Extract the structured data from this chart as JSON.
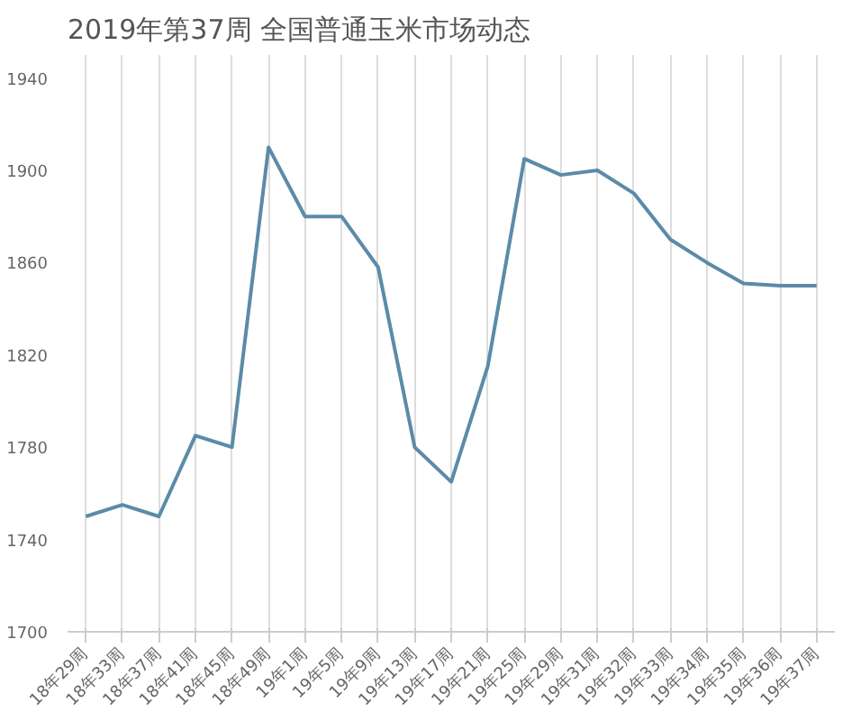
{
  "chart_data": {
    "type": "line",
    "title": "2019年第37周 全国普通玉米市场动态",
    "categories": [
      "18年29周",
      "18年33周",
      "18年37周",
      "18年41周",
      "18年45周",
      "18年49周",
      "19年1周",
      "19年5周",
      "19年9周",
      "19年13周",
      "19年17周",
      "19年21周",
      "19年25周",
      "19年29周",
      "19年31周",
      "19年32周",
      "19年33周",
      "19年34周",
      "19年35周",
      "19年36周",
      "19年37周"
    ],
    "series": [
      {
        "color": "#5b8ba8",
        "values": [
          1750,
          1755,
          1750,
          1785,
          1780,
          1910,
          1880,
          1880,
          1858,
          1780,
          1765,
          1815,
          1905,
          1898,
          1900,
          1890,
          1870,
          1860,
          1851,
          1850,
          1850
        ]
      }
    ],
    "ylim": [
      1700,
      1950
    ],
    "yticks": [
      1700,
      1740,
      1780,
      1820,
      1860,
      1900,
      1940
    ],
    "grid": "x",
    "marker": "none",
    "line_style": "solid"
  }
}
